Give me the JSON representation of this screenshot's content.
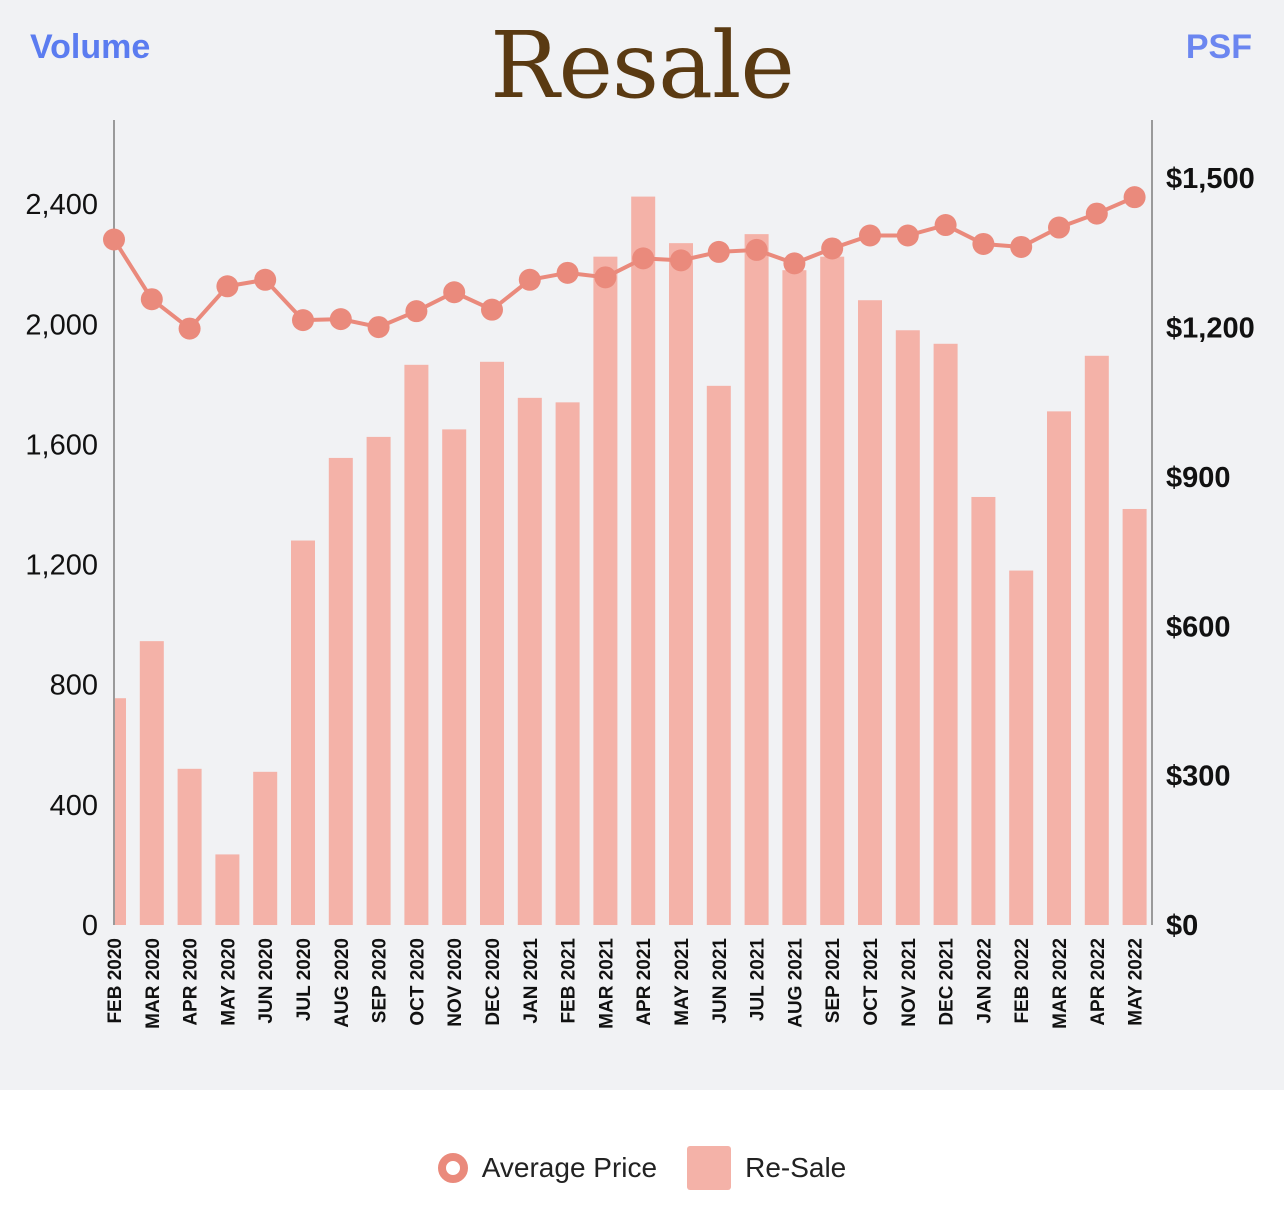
{
  "chart_data": {
    "type": "bar",
    "title": "Resale",
    "left_axis": {
      "label": "Volume",
      "ticks": [
        "0",
        "400",
        "800",
        "1,200",
        "1,600",
        "2,000",
        "2,400"
      ],
      "range": [
        0,
        2680
      ]
    },
    "right_axis": {
      "label": "PSF",
      "ticks": [
        "$0",
        "$300",
        "$600",
        "$900",
        "$1,200",
        "$1,500"
      ],
      "range": [
        0,
        1617
      ]
    },
    "categories": [
      "FEB 2020",
      "MAR 2020",
      "APR 2020",
      "MAY 2020",
      "JUN 2020",
      "JUL 2020",
      "AUG 2020",
      "SEP 2020",
      "OCT 2020",
      "NOV 2020",
      "DEC 2020",
      "JAN 2021",
      "FEB 2021",
      "MAR 2021",
      "APR 2021",
      "MAY 2021",
      "JUN 2021",
      "JUL 2021",
      "AUG 2021",
      "SEP 2021",
      "OCT 2021",
      "NOV 2021",
      "DEC 2021",
      "JAN 2022",
      "FEB 2022",
      "MAR 2022",
      "APR 2022",
      "MAY 2022"
    ],
    "series": [
      {
        "name": "Re-Sale",
        "type": "bar",
        "axis": "left",
        "color": "#f4b2a8",
        "values": [
          755,
          945,
          520,
          235,
          510,
          1280,
          1555,
          1625,
          1865,
          1650,
          1875,
          1755,
          1740,
          2225,
          2425,
          2270,
          1795,
          2300,
          2180,
          2225,
          2080,
          1980,
          1935,
          1425,
          1180,
          1710,
          1895,
          1385
        ]
      },
      {
        "name": "Average Price",
        "type": "line",
        "axis": "right",
        "color": "#ea8a7c",
        "values": [
          1377,
          1257,
          1198,
          1283,
          1296,
          1215,
          1217,
          1201,
          1233,
          1271,
          1236,
          1296,
          1310,
          1301,
          1339,
          1335,
          1352,
          1356,
          1329,
          1359,
          1385,
          1385,
          1406,
          1368,
          1362,
          1401,
          1429,
          1462
        ]
      }
    ],
    "grid": false,
    "legend_position": "bottom-center"
  }
}
